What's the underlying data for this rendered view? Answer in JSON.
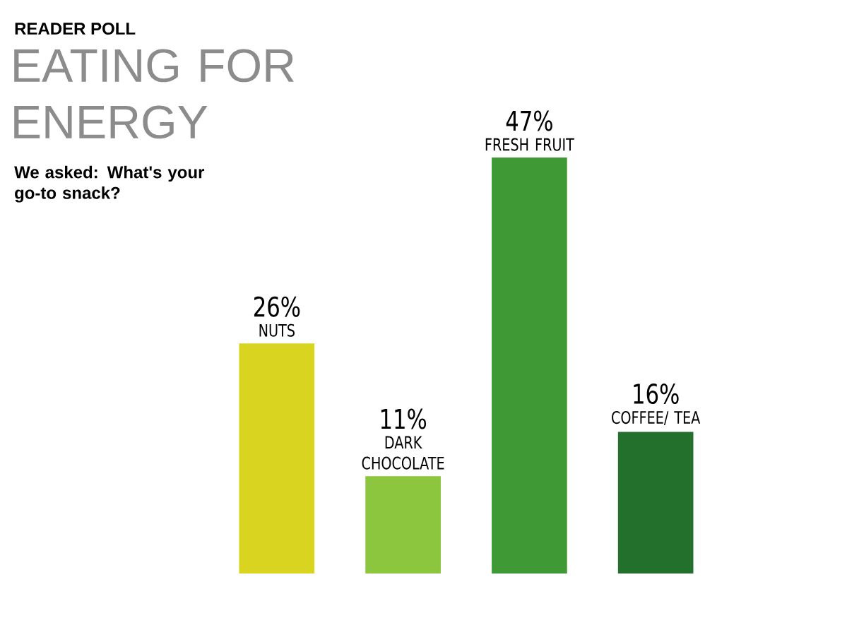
{
  "chart_data": {
    "type": "bar",
    "title": "EATING FOR ENERGY",
    "subtitle": "We asked: What's your go-to snack?",
    "annotations": [
      "READER POLL"
    ],
    "categories": [
      "NUTS",
      "DARK CHOCOLATE",
      "FRESH FRUIT",
      "COFFEE/ TEA"
    ],
    "values": [
      26,
      11,
      47,
      16
    ],
    "value_labels": [
      "26%",
      "11%",
      "47%",
      "16%"
    ],
    "colors": [
      "#d8d420",
      "#8cc63f",
      "#3f9a35",
      "#23702c"
    ]
  }
}
